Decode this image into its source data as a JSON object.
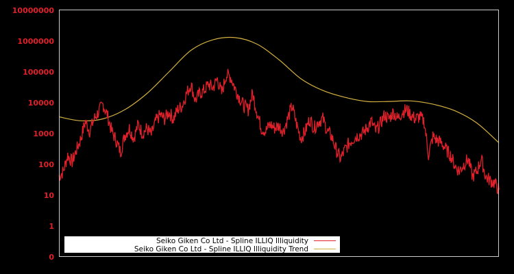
{
  "chart_data": {
    "type": "line",
    "title": "",
    "xlabel": "",
    "ylabel": "",
    "yscale": "log",
    "ylim": [
      0.1,
      10000000
    ],
    "y_tick_labels": [
      "10000000",
      "1000000",
      "100000",
      "10000",
      "1000",
      "100",
      "10",
      "1",
      "0"
    ],
    "y_tick_values": [
      10000000,
      1000000,
      100000,
      10000,
      1000,
      100,
      10,
      1,
      0.1
    ],
    "grid": false,
    "legend_position": "lower-left",
    "colors": {
      "background": "#000000",
      "axis": "#cccccc",
      "tick_text": "#e0202a",
      "series": "#e0202a",
      "trend": "#d4b040",
      "legend_bg": "#ffffff"
    },
    "series": [
      {
        "name": "Seiko Giken Co Ltd - Spline ILLIQ Illiquidity",
        "color": "#e0202a",
        "x_frac": [
          0,
          0.01,
          0.02,
          0.03,
          0.04,
          0.05,
          0.06,
          0.07,
          0.08,
          0.09,
          0.1,
          0.11,
          0.12,
          0.13,
          0.14,
          0.15,
          0.16,
          0.17,
          0.18,
          0.19,
          0.2,
          0.21,
          0.22,
          0.23,
          0.24,
          0.25,
          0.26,
          0.27,
          0.28,
          0.29,
          0.3,
          0.31,
          0.32,
          0.33,
          0.34,
          0.35,
          0.36,
          0.37,
          0.38,
          0.39,
          0.4,
          0.41,
          0.42,
          0.43,
          0.44,
          0.45,
          0.46,
          0.47,
          0.48,
          0.49,
          0.5,
          0.51,
          0.52,
          0.53,
          0.54,
          0.55,
          0.56,
          0.57,
          0.58,
          0.59,
          0.6,
          0.61,
          0.62,
          0.63,
          0.64,
          0.65,
          0.66,
          0.67,
          0.68,
          0.69,
          0.7,
          0.71,
          0.72,
          0.73,
          0.74,
          0.75,
          0.76,
          0.77,
          0.78,
          0.79,
          0.8,
          0.81,
          0.82,
          0.83,
          0.84,
          0.85,
          0.86,
          0.87,
          0.88,
          0.89,
          0.9,
          0.91,
          0.92,
          0.93,
          0.94,
          0.95,
          0.96,
          0.97,
          0.98,
          0.99,
          1.0
        ],
        "values": [
          40,
          60,
          200,
          120,
          300,
          700,
          2500,
          1200,
          3000,
          5000,
          9000,
          4000,
          1200,
          600,
          250,
          900,
          1500,
          700,
          2000,
          1000,
          1500,
          900,
          2500,
          4000,
          3000,
          5000,
          3000,
          6000,
          8000,
          20000,
          40000,
          12000,
          20000,
          25000,
          40000,
          30000,
          60000,
          20000,
          80000,
          70000,
          30000,
          15000,
          8000,
          6000,
          20000,
          5000,
          1500,
          1200,
          2000,
          1500,
          1800,
          1200,
          3000,
          8000,
          2000,
          700,
          1200,
          3000,
          1500,
          2500,
          3000,
          1200,
          800,
          300,
          150,
          300,
          500,
          700,
          900,
          1000,
          1500,
          2500,
          1200,
          2000,
          4000,
          3000,
          5000,
          3000,
          5000,
          6000,
          4000,
          3000,
          3500,
          2500,
          200,
          800,
          600,
          500,
          300,
          200,
          90,
          60,
          100,
          150,
          40,
          60,
          150,
          40,
          30,
          25,
          15
        ]
      },
      {
        "name": "Seiko Giken Co Ltd - Spline ILLIQ Illiquidity Trend",
        "color": "#d4b040",
        "x_frac": [
          0,
          0.05,
          0.1,
          0.15,
          0.2,
          0.25,
          0.3,
          0.35,
          0.4,
          0.45,
          0.5,
          0.55,
          0.6,
          0.65,
          0.7,
          0.75,
          0.8,
          0.85,
          0.9,
          0.95,
          1.0
        ],
        "values": [
          3500,
          2600,
          3000,
          6000,
          20000,
          100000,
          500000,
          1100000,
          1300000,
          800000,
          250000,
          60000,
          25000,
          15000,
          11000,
          11000,
          11500,
          9000,
          5500,
          2200,
          500
        ]
      }
    ]
  },
  "legend": {
    "items": [
      {
        "label": "Seiko Giken Co Ltd - Spline ILLIQ Illiquidity",
        "color": "#e0202a"
      },
      {
        "label": "Seiko Giken Co Ltd - Spline ILLIQ Illiquidity Trend",
        "color": "#d4b040"
      }
    ]
  }
}
